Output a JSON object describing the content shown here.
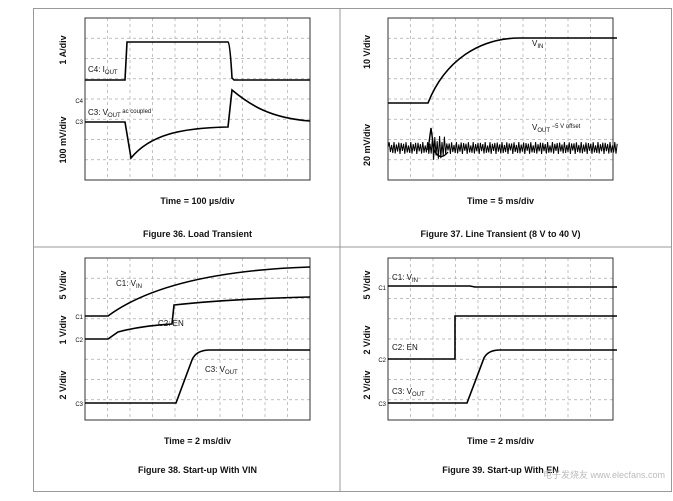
{
  "figures": [
    {
      "caption": "Figure 36. Load Transient",
      "time": "Time = 100 µs/div",
      "y_labels": [
        "1 A/div",
        "100 mV/div"
      ],
      "channels": [
        "C4",
        "C3"
      ],
      "traces": [
        {
          "prefix": "C4: I",
          "sub": "OUT"
        },
        {
          "prefix": "C3: V",
          "sub": "OUT",
          "suffix": " ac coupled"
        }
      ]
    },
    {
      "caption": "Figure 37. Line Transient (8 V to 40 V)",
      "time": "Time = 5 ms/div",
      "y_labels": [
        "10 V/div",
        "20 mV/div"
      ],
      "channels": [],
      "traces": [
        {
          "prefix": "V",
          "sub": "IN"
        },
        {
          "prefix": "V",
          "sub": "OUT",
          "suffix": " −5 V offset"
        }
      ]
    },
    {
      "caption": "Figure 38. Start-up With VIN",
      "time": "Time = 2 ms/div",
      "y_labels": [
        "5 V/div",
        "1 V/div",
        "2 V/div"
      ],
      "channels": [
        "C1",
        "C2",
        "C3"
      ],
      "traces": [
        {
          "prefix": "C1: V",
          "sub": "IN"
        },
        {
          "prefix": "C2: EN"
        },
        {
          "prefix": "C3: V",
          "sub": "OUT"
        }
      ]
    },
    {
      "caption": "Figure 39. Start-up With EN",
      "time": "Time = 2 ms/div",
      "y_labels": [
        "5 V/div",
        "2 V/div",
        "2 V/div"
      ],
      "channels": [
        "C1",
        "C2",
        "C3"
      ],
      "traces": [
        {
          "prefix": "C1: V",
          "sub": "IN"
        },
        {
          "prefix": "C2: EN"
        },
        {
          "prefix": "C3: V",
          "sub": "OUT"
        }
      ]
    }
  ],
  "watermark": "电子发烧友 www.elecfans.com"
}
